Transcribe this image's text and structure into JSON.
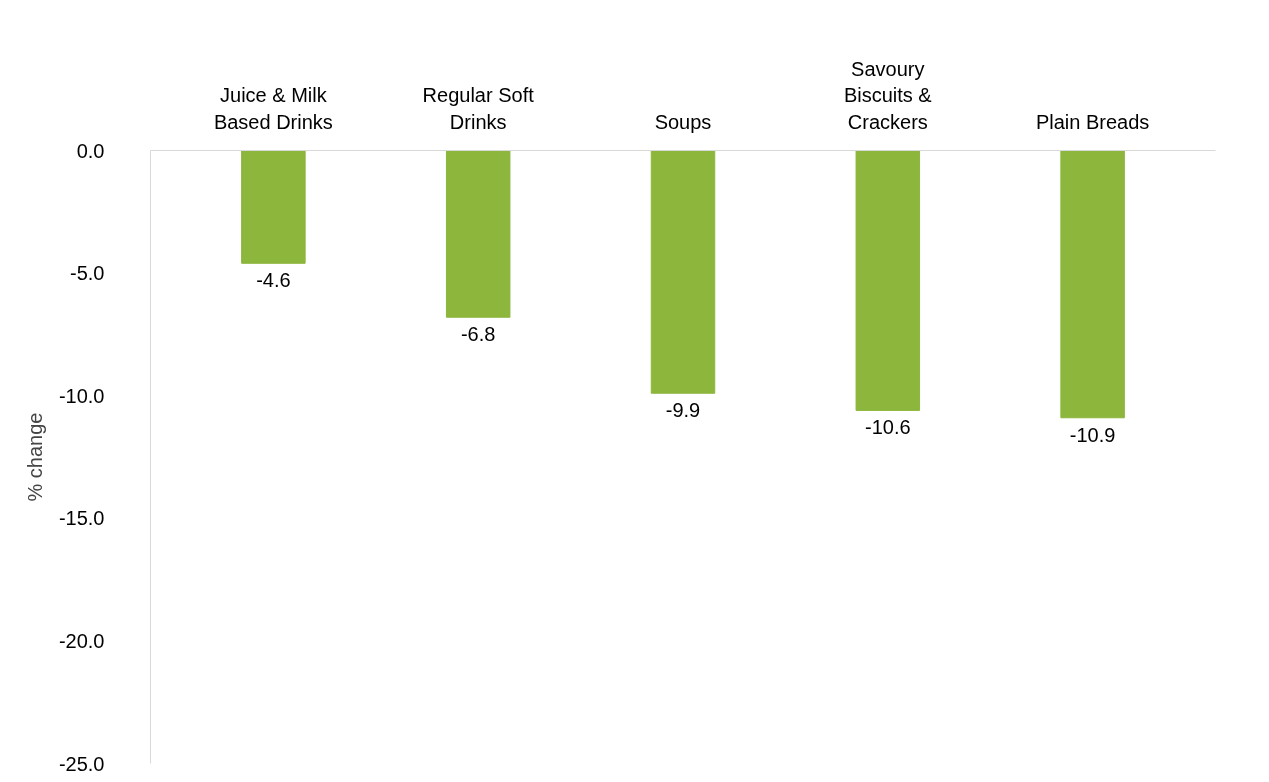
{
  "chart_data": {
    "type": "bar",
    "ylabel": "% change",
    "categories": [
      "Juice & Milk Based Drinks",
      "Regular Soft Drinks",
      "Soups",
      "Savoury Biscuits & Crackers",
      "Plain Breads"
    ],
    "values": [
      -4.6,
      -6.8,
      -9.9,
      -10.6,
      -10.9
    ],
    "color": "#8cb63c",
    "ylim": [
      -25,
      0
    ],
    "yticks": [
      {
        "value": 0,
        "label": "0.0"
      },
      {
        "value": -5,
        "label": "-5.0"
      },
      {
        "value": -10,
        "label": "-10.0"
      },
      {
        "value": -15,
        "label": "-15.0"
      },
      {
        "value": -20,
        "label": "-20.0"
      },
      {
        "value": -25,
        "label": "-25.0"
      }
    ],
    "data_labels": true,
    "grid": false
  }
}
